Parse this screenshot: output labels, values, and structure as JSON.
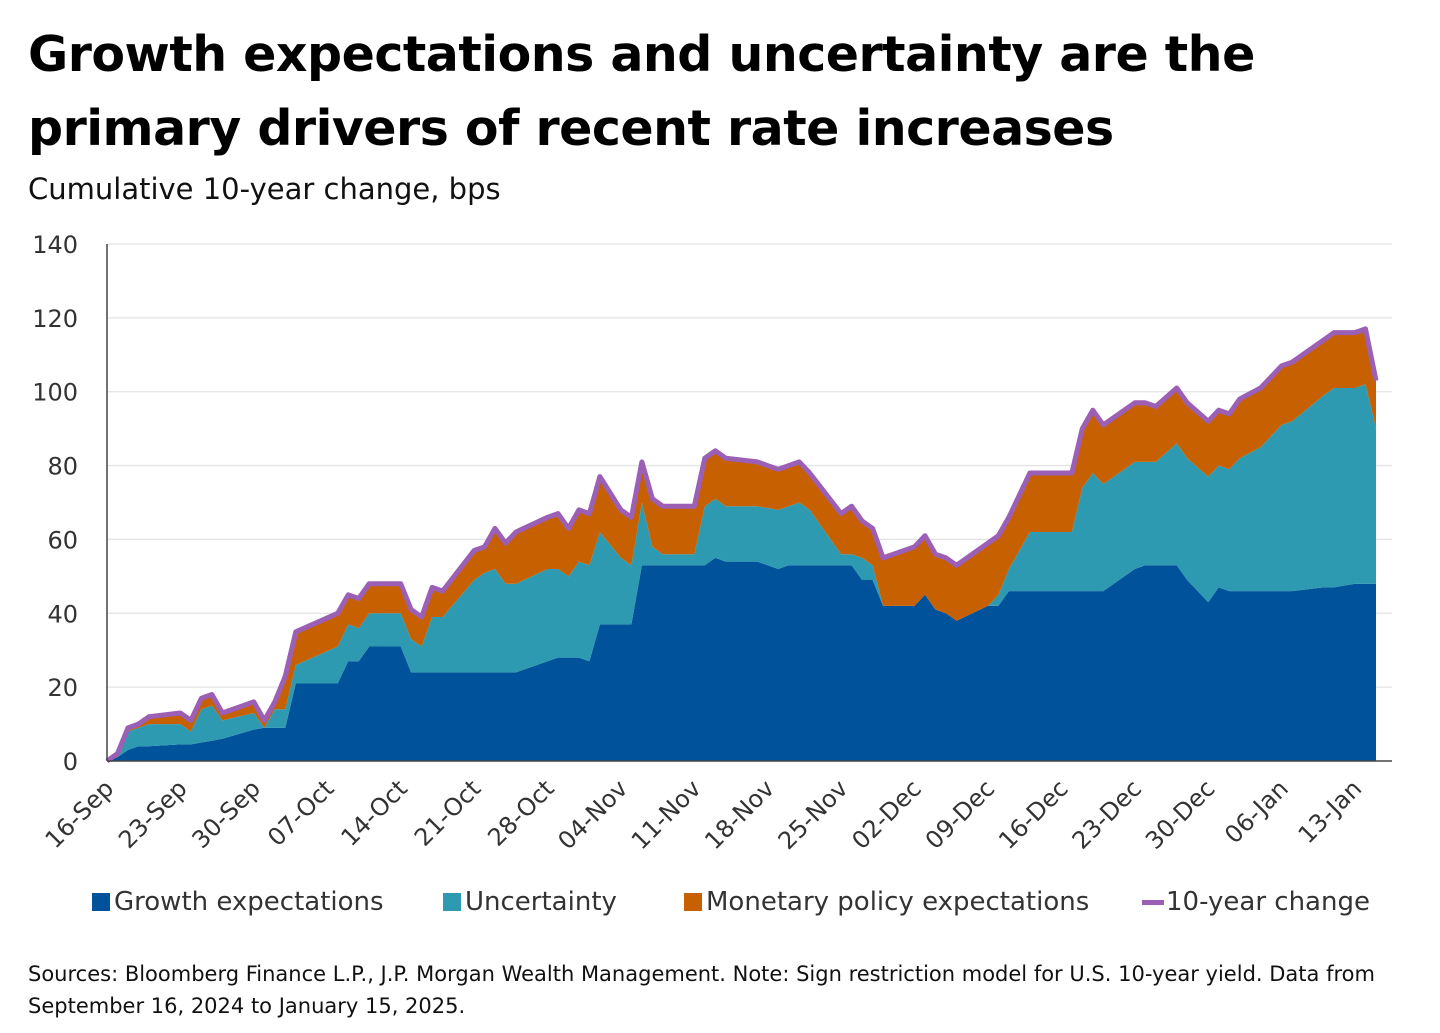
{
  "title": "Growth expectations and uncertainty are the primary drivers of recent rate increases",
  "subtitle": "Cumulative 10-year change, bps",
  "source": "Sources: Bloomberg Finance L.P., J.P. Morgan Wealth Management. Note: Sign restriction model for U.S. 10-year yield. Data from September 16, 2024 to January 15, 2025.",
  "colors": {
    "growth": "#00529B",
    "uncertainty": "#2D9AB1",
    "monetary": "#C76000",
    "line": "#9B5FB5",
    "grid": "#E3E3E3"
  },
  "chart_data": {
    "type": "area",
    "stacked": true,
    "title": "Growth expectations and uncertainty are the primary drivers of recent rate increases",
    "ylabel": "Cumulative 10-year change, bps",
    "xlabel": "",
    "x_unit": "days since 16-Sep-2024",
    "xlim": [
      0,
      121
    ],
    "ylim": [
      0,
      140
    ],
    "yticks": [
      0,
      20,
      40,
      60,
      80,
      100,
      120,
      140
    ],
    "xticks": [
      {
        "day": 0,
        "label": "16-Sep"
      },
      {
        "day": 7,
        "label": "23-Sep"
      },
      {
        "day": 14,
        "label": "30-Sep"
      },
      {
        "day": 21,
        "label": "07-Oct"
      },
      {
        "day": 28,
        "label": "14-Oct"
      },
      {
        "day": 35,
        "label": "21-Oct"
      },
      {
        "day": 42,
        "label": "28-Oct"
      },
      {
        "day": 49,
        "label": "04-Nov"
      },
      {
        "day": 56,
        "label": "11-Nov"
      },
      {
        "day": 63,
        "label": "18-Nov"
      },
      {
        "day": 70,
        "label": "25-Nov"
      },
      {
        "day": 77,
        "label": "02-Dec"
      },
      {
        "day": 84,
        "label": "09-Dec"
      },
      {
        "day": 91,
        "label": "16-Dec"
      },
      {
        "day": 98,
        "label": "23-Dec"
      },
      {
        "day": 105,
        "label": "30-Dec"
      },
      {
        "day": 112,
        "label": "06-Jan"
      },
      {
        "day": 119,
        "label": "13-Jan"
      }
    ],
    "grid": true,
    "legend": {
      "placement": "bottom",
      "entries": [
        "Growth expectations",
        "Uncertainty",
        "Monetary policy expectations",
        "10-year change"
      ]
    },
    "columns": [
      "day",
      "growth",
      "uncertainty",
      "monetary",
      "ten_year_change"
    ],
    "rows": [
      [
        0,
        0,
        0,
        0,
        0
      ],
      [
        1,
        1,
        0,
        1,
        2
      ],
      [
        2,
        3,
        5,
        1,
        9
      ],
      [
        3,
        4,
        5,
        1,
        10
      ],
      [
        4,
        4,
        6,
        2,
        12
      ],
      [
        7,
        4.5,
        5.5,
        3,
        13
      ],
      [
        8,
        4.5,
        3.5,
        3,
        11
      ],
      [
        9,
        5,
        9,
        3,
        17
      ],
      [
        10,
        5.5,
        9.5,
        3,
        18
      ],
      [
        11,
        6,
        5,
        2,
        13
      ],
      [
        14,
        8.5,
        4.5,
        3,
        16
      ],
      [
        15,
        9,
        0,
        2,
        11
      ],
      [
        16,
        9,
        5,
        2,
        16
      ],
      [
        17,
        9,
        5,
        9,
        23
      ],
      [
        18,
        21,
        5,
        9,
        35
      ],
      [
        22,
        21,
        10,
        9,
        40
      ],
      [
        23,
        27,
        10,
        8,
        45
      ],
      [
        24,
        27,
        9,
        8,
        44
      ],
      [
        25,
        31,
        9,
        8,
        48
      ],
      [
        28,
        31,
        9,
        8,
        48
      ],
      [
        29,
        24,
        9,
        8,
        41
      ],
      [
        30,
        24,
        7,
        8,
        39
      ],
      [
        31,
        24,
        15,
        8,
        47
      ],
      [
        32,
        24,
        15,
        7,
        46
      ],
      [
        35,
        24,
        25,
        8,
        57
      ],
      [
        36,
        24,
        27,
        7,
        58
      ],
      [
        37,
        24,
        28,
        11,
        63
      ],
      [
        38,
        24,
        24,
        11,
        59
      ],
      [
        39,
        24,
        24,
        14,
        62
      ],
      [
        42,
        27,
        25,
        14,
        66
      ],
      [
        43,
        28,
        24,
        15,
        67
      ],
      [
        44,
        28,
        22,
        13,
        63
      ],
      [
        45,
        28,
        26,
        14,
        68
      ],
      [
        46,
        27,
        26,
        14,
        67
      ],
      [
        47,
        37,
        25,
        15,
        77
      ],
      [
        49,
        37,
        18,
        13,
        68
      ],
      [
        50,
        37,
        16,
        13,
        66
      ],
      [
        51,
        53,
        17,
        11,
        81
      ],
      [
        52,
        53,
        5,
        13,
        71
      ],
      [
        53,
        53,
        3,
        13,
        69
      ],
      [
        56,
        53,
        3,
        13,
        69
      ],
      [
        57,
        53,
        16,
        13,
        82
      ],
      [
        58,
        55,
        16,
        13,
        84
      ],
      [
        59,
        54,
        15,
        13,
        82
      ],
      [
        62,
        54,
        15,
        12,
        81
      ],
      [
        64,
        52,
        16,
        11,
        79
      ],
      [
        65,
        53,
        16,
        11,
        80
      ],
      [
        66,
        53,
        17,
        11,
        81
      ],
      [
        67,
        53,
        15,
        10,
        78
      ],
      [
        70,
        53,
        3,
        11,
        67
      ],
      [
        71,
        53,
        3,
        13,
        69
      ],
      [
        72,
        49,
        6,
        10,
        65
      ],
      [
        73,
        49,
        4,
        10,
        63
      ],
      [
        74,
        42,
        0,
        13,
        55
      ],
      [
        77,
        42,
        0,
        16,
        58
      ],
      [
        78,
        45,
        0,
        16,
        61
      ],
      [
        79,
        41,
        0,
        15,
        56
      ],
      [
        80,
        40,
        0,
        15,
        55
      ],
      [
        81,
        38,
        0,
        15,
        53
      ],
      [
        84,
        42,
        0,
        17,
        59
      ],
      [
        85,
        42,
        3,
        16,
        61
      ],
      [
        86,
        46,
        6,
        14,
        66
      ],
      [
        87,
        46,
        11,
        15,
        72
      ],
      [
        88,
        46,
        16,
        16,
        78
      ],
      [
        92,
        46,
        16,
        16,
        78
      ],
      [
        93,
        46,
        28,
        16,
        90
      ],
      [
        94,
        46,
        32,
        17,
        95
      ],
      [
        95,
        46,
        29,
        16,
        91
      ],
      [
        96,
        48,
        29,
        16,
        93
      ],
      [
        98,
        52,
        29,
        16,
        97
      ],
      [
        99,
        53,
        28,
        16,
        97
      ],
      [
        100,
        53,
        28,
        15,
        96
      ],
      [
        102,
        53,
        33,
        15,
        101
      ],
      [
        103,
        49,
        33,
        15,
        97
      ],
      [
        105,
        43,
        34,
        15,
        92
      ],
      [
        106,
        47,
        33,
        15,
        95
      ],
      [
        107,
        46,
        33,
        15,
        94
      ],
      [
        108,
        46,
        36,
        16,
        98
      ],
      [
        110,
        46,
        39,
        16,
        101
      ],
      [
        112,
        46,
        45,
        16,
        107
      ],
      [
        113,
        46,
        46,
        16,
        108
      ],
      [
        116,
        47,
        52,
        15,
        114
      ],
      [
        117,
        47,
        54,
        15,
        116
      ],
      [
        119,
        48,
        53,
        15,
        116
      ],
      [
        120,
        48,
        54,
        15,
        117
      ],
      [
        121,
        48,
        42,
        13,
        103
      ]
    ]
  },
  "legend": {
    "growth": "Growth expectations",
    "uncertainty": "Uncertainty",
    "monetary": "Monetary policy expectations",
    "line": "10-year change"
  }
}
